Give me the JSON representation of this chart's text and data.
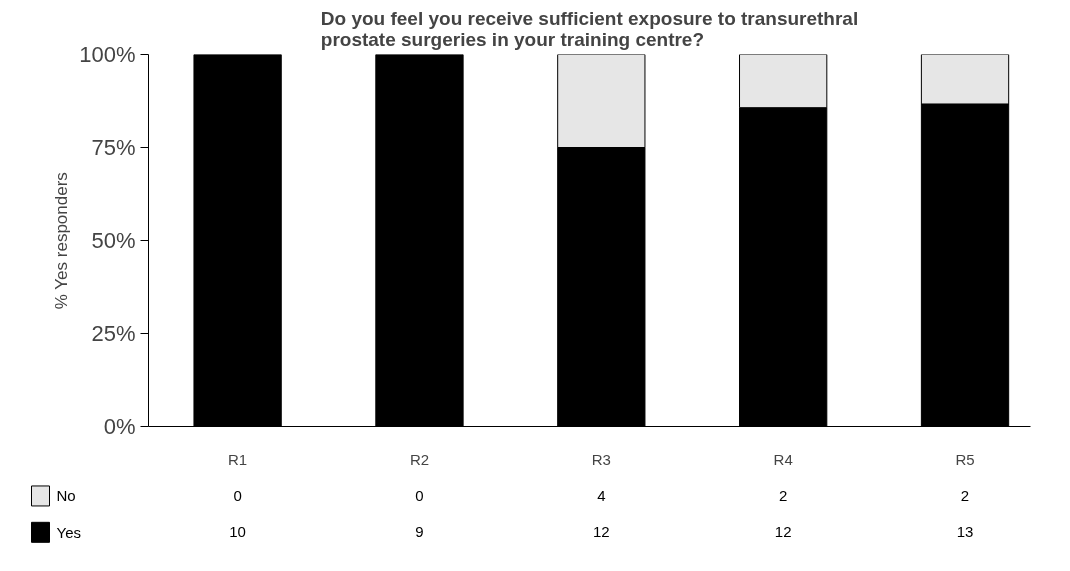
{
  "chart_data": {
    "type": "bar",
    "stacked": true,
    "title": "Do you feel you receive sufficient exposure to transurethral prostate surgeries in your training centre?",
    "ylabel": "% Yes responders",
    "categories": [
      "R1",
      "R2",
      "R3",
      "R4",
      "R5"
    ],
    "series": [
      {
        "name": "Yes",
        "color": "#000000",
        "values": [
          100,
          100,
          75,
          85.7,
          86.7
        ]
      },
      {
        "name": "No",
        "color": "#e6e6e6",
        "values": [
          0,
          0,
          25,
          14.3,
          13.3
        ]
      }
    ],
    "annotations": [
      "0",
      "0",
      "4",
      "2",
      "2",
      "10",
      "9",
      "12",
      "12",
      "13"
    ],
    "ylim": [
      0,
      100
    ],
    "yticks": [
      {
        "value": 0,
        "label": "0%"
      },
      {
        "value": 25,
        "label": "25%"
      },
      {
        "value": 50,
        "label": "50%"
      },
      {
        "value": 75,
        "label": "75%"
      },
      {
        "value": 100,
        "label": "100%"
      }
    ],
    "grid": false,
    "legend": "bottom"
  }
}
